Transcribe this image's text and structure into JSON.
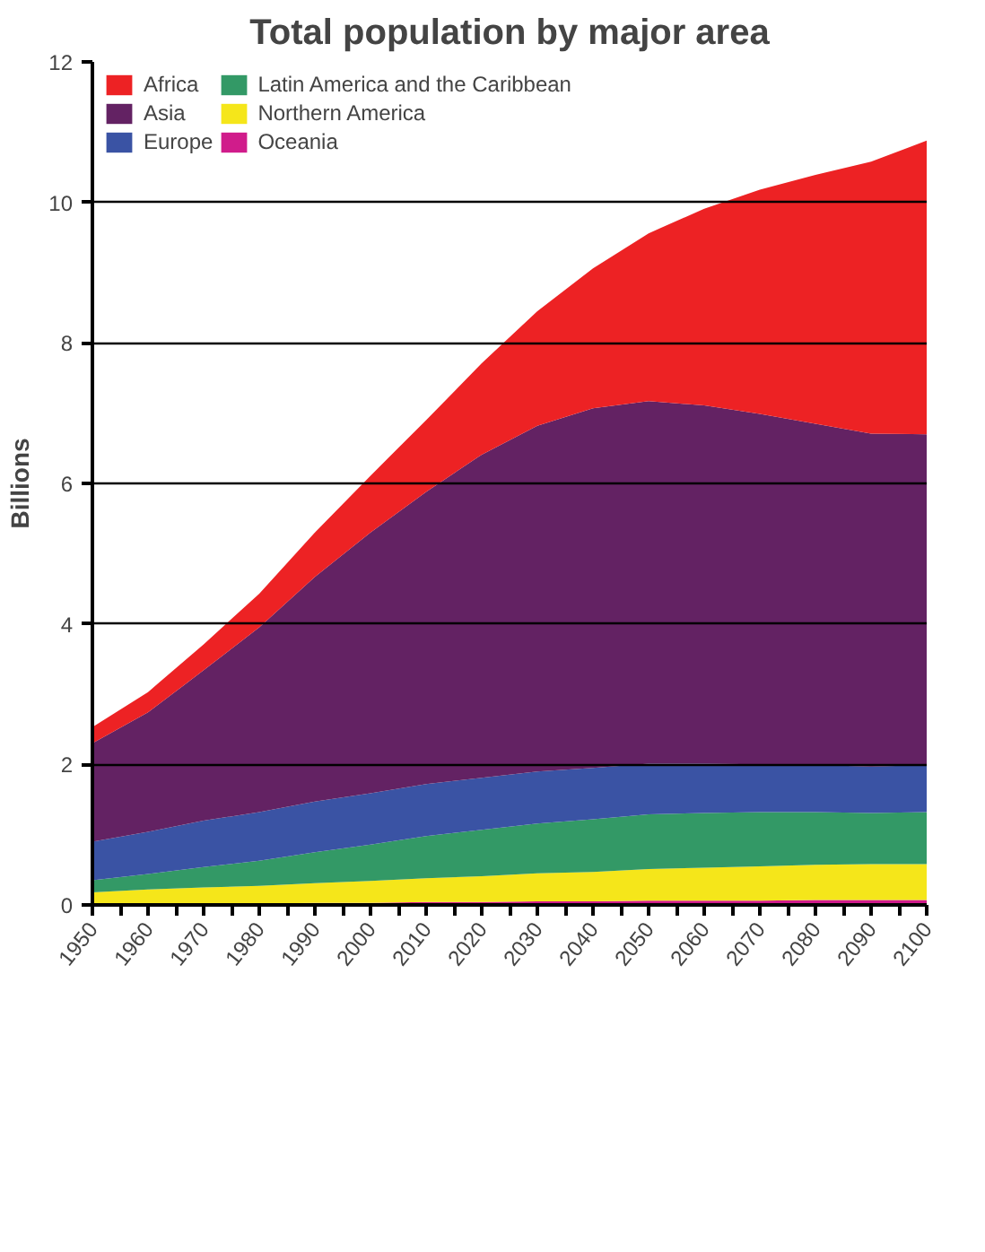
{
  "chart_data": {
    "type": "area",
    "stacked": true,
    "title": "Total population by major area",
    "ylabel": "Billions",
    "x": [
      1950,
      1960,
      1970,
      1980,
      1990,
      2000,
      2010,
      2020,
      2030,
      2040,
      2050,
      2060,
      2070,
      2080,
      2090,
      2100
    ],
    "series": [
      {
        "name": "Oceania",
        "color": "#d01c8b",
        "values": [
          0.01,
          0.02,
          0.02,
          0.02,
          0.03,
          0.03,
          0.04,
          0.04,
          0.05,
          0.05,
          0.06,
          0.06,
          0.06,
          0.07,
          0.07,
          0.07
        ]
      },
      {
        "name": "Northern America",
        "color": "#f5e61a",
        "values": [
          0.17,
          0.2,
          0.23,
          0.25,
          0.28,
          0.31,
          0.34,
          0.37,
          0.4,
          0.42,
          0.45,
          0.47,
          0.49,
          0.5,
          0.51,
          0.51
        ]
      },
      {
        "name": "Latin America and the Caribbean",
        "color": "#339966",
        "values": [
          0.17,
          0.22,
          0.29,
          0.36,
          0.44,
          0.52,
          0.6,
          0.66,
          0.71,
          0.75,
          0.78,
          0.78,
          0.77,
          0.75,
          0.73,
          0.74
        ]
      },
      {
        "name": "Europe",
        "color": "#3a53a4",
        "values": [
          0.55,
          0.6,
          0.66,
          0.69,
          0.72,
          0.73,
          0.74,
          0.74,
          0.74,
          0.73,
          0.72,
          0.7,
          0.68,
          0.67,
          0.66,
          0.67
        ]
      },
      {
        "name": "Asia",
        "color": "#632263",
        "values": [
          1.4,
          1.7,
          2.14,
          2.63,
          3.2,
          3.71,
          4.16,
          4.6,
          4.92,
          5.12,
          5.16,
          5.1,
          4.99,
          4.86,
          4.74,
          4.71
        ]
      },
      {
        "name": "Africa",
        "color": "#ed2224",
        "values": [
          0.23,
          0.29,
          0.37,
          0.48,
          0.63,
          0.81,
          1.02,
          1.3,
          1.63,
          1.99,
          2.39,
          2.8,
          3.19,
          3.54,
          3.87,
          4.18
        ]
      }
    ],
    "xlim": [
      1950,
      2100
    ],
    "xticks": [
      1950,
      {
        "value": 1955,
        "label": null
      },
      1960,
      {
        "value": 1965,
        "label": null
      },
      1970,
      {
        "value": 1975,
        "label": null
      },
      1980,
      {
        "value": 1985,
        "label": null
      },
      1990,
      {
        "value": 1995,
        "label": null
      },
      2000,
      {
        "value": 2005,
        "label": null
      },
      2010,
      {
        "value": 2015,
        "label": null
      },
      2020,
      {
        "value": 2025,
        "label": null
      },
      2030,
      {
        "value": 2035,
        "label": null
      },
      2040,
      {
        "value": 2045,
        "label": null
      },
      2050,
      {
        "value": 2055,
        "label": null
      },
      2060,
      {
        "value": 2065,
        "label": null
      },
      2070,
      {
        "value": 2075,
        "label": null
      },
      2080,
      {
        "value": 2085,
        "label": null
      },
      2090,
      {
        "value": 2095,
        "label": null
      },
      2100
    ],
    "ylim": [
      0,
      12
    ],
    "yticks": [
      0,
      2,
      4,
      6,
      8,
      10,
      12
    ],
    "grid": "y",
    "legend": "top left"
  }
}
